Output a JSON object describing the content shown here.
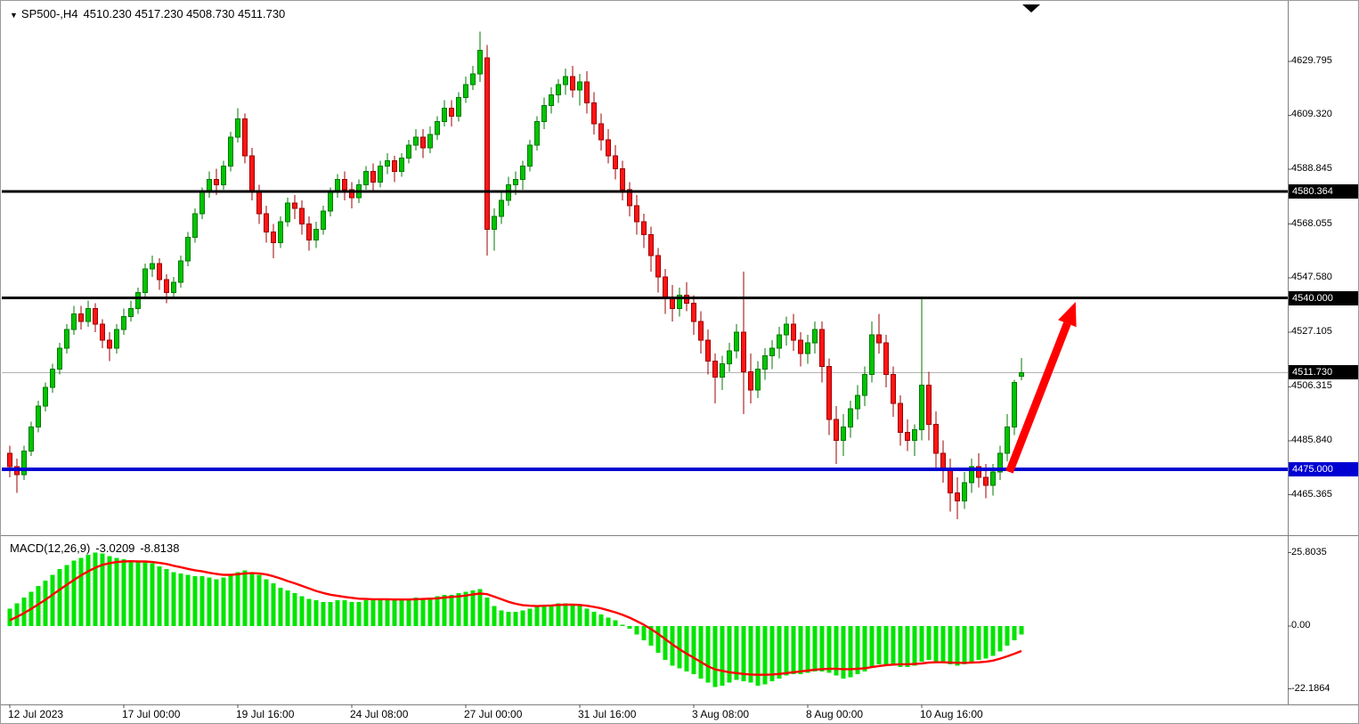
{
  "window": {
    "title_symbol": "SP500-,H4",
    "title_ohlc": "4510.230 4517.230 4508.730 4511.730"
  },
  "icons": {
    "title_marker": "▼",
    "scroll_marker": "chart-shift-triangle"
  },
  "colors": {
    "background": "#FFFFFF",
    "bull": "#00C400",
    "bull_edge": "#007A00",
    "bear": "#FF1414",
    "bear_edge": "#9E0000",
    "histogram": "#00E400",
    "signal": "#FF0000",
    "level_black": "#000000",
    "level_blue": "#0000D2",
    "current_line": "#B4B4B4",
    "current_box": "#000000",
    "arrow": "#FF0000",
    "separator": "#808080"
  },
  "chart_data": {
    "type": "candlestick",
    "title": "SP500-,H4",
    "ohlc_readout": {
      "open": "4510.230",
      "high": "4517.230",
      "low": "4508.730",
      "close": "4511.730"
    },
    "x_ticks": [
      {
        "bar": 0,
        "label": "12 Jul 2023"
      },
      {
        "bar": 16,
        "label": "17 Jul 00:00"
      },
      {
        "bar": 32,
        "label": "19 Jul 16:00"
      },
      {
        "bar": 48,
        "label": "24 Jul 08:00"
      },
      {
        "bar": 64,
        "label": "27 Jul 00:00"
      },
      {
        "bar": 80,
        "label": "31 Jul 16:00"
      },
      {
        "bar": 96,
        "label": "3 Aug 08:00"
      },
      {
        "bar": 112,
        "label": "8 Aug 00:00"
      },
      {
        "bar": 128,
        "label": "10 Aug 16:00"
      }
    ],
    "main_panel": {
      "ylim": [
        4450,
        4650
      ],
      "price_ticks": [
        {
          "v": 4629.795,
          "label": "4629.795"
        },
        {
          "v": 4609.32,
          "label": "4609.320"
        },
        {
          "v": 4588.845,
          "label": "4588.845"
        },
        {
          "v": 4568.055,
          "label": "4568.055"
        },
        {
          "v": 4547.58,
          "label": "4547.580"
        },
        {
          "v": 4527.105,
          "label": "4527.105"
        },
        {
          "v": 4506.315,
          "label": "4506.315"
        },
        {
          "v": 4485.84,
          "label": "4485.840"
        },
        {
          "v": 4465.365,
          "label": "4465.365"
        }
      ],
      "hlines": [
        {
          "v": 4580.364,
          "label": "4580.364",
          "color": "#000000",
          "width": 3,
          "box_bg": "#000000"
        },
        {
          "v": 4540.0,
          "label": "4540.000",
          "color": "#000000",
          "width": 3,
          "box_bg": "#000000"
        },
        {
          "v": 4475.0,
          "label": "4475.000",
          "color": "#0000D2",
          "width": 4,
          "box_bg": "#0000D2"
        }
      ],
      "current_price": {
        "v": 4511.73,
        "label": "4511.730"
      },
      "candles": [
        [
          4481,
          4484,
          4472,
          4476
        ],
        [
          4476,
          4479,
          4466,
          4473
        ],
        [
          4473,
          4484,
          4471,
          4482
        ],
        [
          4482,
          4493,
          4480,
          4491
        ],
        [
          4491,
          4501,
          4489,
          4499
        ],
        [
          4499,
          4508,
          4497,
          4506
        ],
        [
          4506,
          4515,
          4504,
          4513
        ],
        [
          4513,
          4523,
          4511,
          4521
        ],
        [
          4521,
          4530,
          4519,
          4528
        ],
        [
          4528,
          4537,
          4526,
          4534
        ],
        [
          4534,
          4537,
          4528,
          4531
        ],
        [
          4531,
          4539,
          4529,
          4536
        ],
        [
          4536,
          4538,
          4527,
          4530
        ],
        [
          4530,
          4532,
          4521,
          4524
        ],
        [
          4524,
          4527,
          4516,
          4521
        ],
        [
          4521,
          4530,
          4519,
          4528
        ],
        [
          4528,
          4536,
          4526,
          4533
        ],
        [
          4533,
          4539,
          4531,
          4536
        ],
        [
          4536,
          4544,
          4534,
          4542
        ],
        [
          4542,
          4553,
          4540,
          4551
        ],
        [
          4551,
          4556,
          4548,
          4553
        ],
        [
          4553,
          4555,
          4543,
          4547
        ],
        [
          4547,
          4549,
          4538,
          4542
        ],
        [
          4542,
          4548,
          4540,
          4546
        ],
        [
          4546,
          4556,
          4544,
          4554
        ],
        [
          4554,
          4565,
          4552,
          4563
        ],
        [
          4563,
          4574,
          4561,
          4572
        ],
        [
          4572,
          4582,
          4570,
          4580
        ],
        [
          4580,
          4588,
          4578,
          4585
        ],
        [
          4585,
          4589,
          4579,
          4583
        ],
        [
          4583,
          4592,
          4581,
          4590
        ],
        [
          4590,
          4603,
          4588,
          4601
        ],
        [
          4601,
          4612,
          4599,
          4608
        ],
        [
          4608,
          4610,
          4591,
          4594
        ],
        [
          4594,
          4597,
          4577,
          4580
        ],
        [
          4580,
          4583,
          4568,
          4572
        ],
        [
          4572,
          4575,
          4561,
          4565
        ],
        [
          4565,
          4568,
          4555,
          4561
        ],
        [
          4561,
          4571,
          4559,
          4569
        ],
        [
          4569,
          4578,
          4567,
          4576
        ],
        [
          4576,
          4579,
          4570,
          4574
        ],
        [
          4574,
          4577,
          4564,
          4568
        ],
        [
          4568,
          4571,
          4558,
          4562
        ],
        [
          4562,
          4569,
          4559,
          4566
        ],
        [
          4566,
          4575,
          4564,
          4573
        ],
        [
          4573,
          4582,
          4571,
          4580
        ],
        [
          4580,
          4587,
          4578,
          4585
        ],
        [
          4585,
          4588,
          4577,
          4581
        ],
        [
          4581,
          4584,
          4574,
          4578
        ],
        [
          4578,
          4585,
          4576,
          4583
        ],
        [
          4583,
          4590,
          4581,
          4588
        ],
        [
          4588,
          4591,
          4580,
          4584
        ],
        [
          4584,
          4592,
          4582,
          4590
        ],
        [
          4590,
          4595,
          4587,
          4592
        ],
        [
          4592,
          4594,
          4584,
          4588
        ],
        [
          4588,
          4595,
          4586,
          4593
        ],
        [
          4593,
          4600,
          4591,
          4598
        ],
        [
          4598,
          4604,
          4596,
          4601
        ],
        [
          4601,
          4604,
          4593,
          4597
        ],
        [
          4597,
          4605,
          4595,
          4602
        ],
        [
          4602,
          4609,
          4600,
          4607
        ],
        [
          4607,
          4615,
          4605,
          4612
        ],
        [
          4612,
          4615,
          4605,
          4609
        ],
        [
          4609,
          4618,
          4607,
          4616
        ],
        [
          4616,
          4624,
          4614,
          4621
        ],
        [
          4621,
          4628,
          4619,
          4625
        ],
        [
          4625,
          4641,
          4622,
          4634
        ],
        [
          4631,
          4636,
          4556,
          4566
        ],
        [
          4566,
          4574,
          4558,
          4571
        ],
        [
          4571,
          4580,
          4568,
          4577
        ],
        [
          4577,
          4586,
          4575,
          4583
        ],
        [
          4583,
          4588,
          4579,
          4585
        ],
        [
          4585,
          4592,
          4581,
          4590
        ],
        [
          4590,
          4600,
          4588,
          4598
        ],
        [
          4598,
          4609,
          4596,
          4607
        ],
        [
          4607,
          4616,
          4604,
          4613
        ],
        [
          4613,
          4620,
          4610,
          4617
        ],
        [
          4617,
          4623,
          4614,
          4621
        ],
        [
          4621,
          4627,
          4617,
          4624
        ],
        [
          4624,
          4628,
          4616,
          4619
        ],
        [
          4619,
          4625,
          4613,
          4622
        ],
        [
          4622,
          4626,
          4610,
          4614
        ],
        [
          4614,
          4618,
          4602,
          4606
        ],
        [
          4606,
          4610,
          4596,
          4600
        ],
        [
          4600,
          4604,
          4591,
          4594
        ],
        [
          4594,
          4598,
          4585,
          4589
        ],
        [
          4589,
          4592,
          4577,
          4581
        ],
        [
          4581,
          4584,
          4571,
          4575
        ],
        [
          4575,
          4579,
          4564,
          4569
        ],
        [
          4569,
          4572,
          4559,
          4564
        ],
        [
          4564,
          4567,
          4550,
          4556
        ],
        [
          4556,
          4559,
          4542,
          4548
        ],
        [
          4548,
          4551,
          4534,
          4540
        ],
        [
          4540,
          4545,
          4531,
          4536
        ],
        [
          4536,
          4544,
          4533,
          4541
        ],
        [
          4541,
          4546,
          4535,
          4538
        ],
        [
          4538,
          4541,
          4526,
          4531
        ],
        [
          4531,
          4535,
          4519,
          4524
        ],
        [
          4524,
          4528,
          4511,
          4516
        ],
        [
          4516,
          4519,
          4500,
          4510
        ],
        [
          4510,
          4518,
          4505,
          4515
        ],
        [
          4515,
          4523,
          4512,
          4520
        ],
        [
          4520,
          4530,
          4517,
          4527
        ],
        [
          4527,
          4550,
          4496,
          4512
        ],
        [
          4512,
          4519,
          4500,
          4505
        ],
        [
          4505,
          4516,
          4502,
          4513
        ],
        [
          4513,
          4521,
          4509,
          4518
        ],
        [
          4518,
          4524,
          4513,
          4521
        ],
        [
          4521,
          4529,
          4517,
          4526
        ],
        [
          4526,
          4533,
          4522,
          4530
        ],
        [
          4530,
          4534,
          4520,
          4524
        ],
        [
          4524,
          4527,
          4514,
          4519
        ],
        [
          4519,
          4526,
          4515,
          4523
        ],
        [
          4523,
          4531,
          4519,
          4528
        ],
        [
          4528,
          4531,
          4508,
          4514
        ],
        [
          4514,
          4517,
          4488,
          4494
        ],
        [
          4494,
          4499,
          4477,
          4486
        ],
        [
          4486,
          4496,
          4480,
          4491
        ],
        [
          4491,
          4501,
          4487,
          4498
        ],
        [
          4498,
          4507,
          4494,
          4503
        ],
        [
          4503,
          4514,
          4499,
          4511
        ],
        [
          4511,
          4531,
          4508,
          4526
        ],
        [
          4526,
          4534,
          4519,
          4523
        ],
        [
          4523,
          4526,
          4506,
          4511
        ],
        [
          4511,
          4514,
          4495,
          4500
        ],
        [
          4500,
          4503,
          4484,
          4489
        ],
        [
          4489,
          4494,
          4482,
          4486
        ],
        [
          4486,
          4492,
          4480,
          4490
        ],
        [
          4490,
          4540,
          4486,
          4507
        ],
        [
          4507,
          4512,
          4486,
          4492
        ],
        [
          4492,
          4497,
          4475,
          4481
        ],
        [
          4481,
          4486,
          4470,
          4475
        ],
        [
          4475,
          4479,
          4459,
          4466
        ],
        [
          4466,
          4472,
          4456,
          4463
        ],
        [
          4463,
          4474,
          4460,
          4470
        ],
        [
          4470,
          4479,
          4466,
          4476
        ],
        [
          4476,
          4481,
          4468,
          4472
        ],
        [
          4472,
          4477,
          4464,
          4469
        ],
        [
          4469,
          4477,
          4465,
          4474
        ],
        [
          4474,
          4484,
          4471,
          4481
        ],
        [
          4481,
          4496,
          4478,
          4491
        ],
        [
          4491,
          4509,
          4488,
          4508
        ],
        [
          4510.23,
          4517.23,
          4508.73,
          4511.73
        ]
      ]
    },
    "macd_panel": {
      "label": "MACD(12,26,9)",
      "value_main": "-3.0209",
      "value_signal": "-8.8138",
      "ylim": [
        -27,
        31
      ],
      "ticks": [
        {
          "v": 25.8035,
          "label": "25.8035"
        },
        {
          "v": 0,
          "label": "0.00"
        },
        {
          "v": -22.1864,
          "label": "-22.1864"
        }
      ],
      "histogram": [
        6,
        8,
        10,
        12,
        14,
        16,
        18,
        20,
        21.5,
        23,
        24,
        25,
        25.8,
        25.5,
        24.5,
        24,
        23.5,
        23,
        22.5,
        22.5,
        22,
        21,
        20,
        19,
        18.5,
        18,
        17.5,
        17.5,
        17,
        16.5,
        17,
        18,
        19,
        19.5,
        19,
        18,
        16.5,
        15,
        13.5,
        12.5,
        11.5,
        10.5,
        9.5,
        9,
        8.5,
        8.5,
        9,
        9,
        8.5,
        8.5,
        9,
        9,
        9.5,
        9.5,
        9,
        9,
        9.5,
        10,
        9.5,
        10,
        10.5,
        11,
        11,
        11.5,
        12,
        12.5,
        13,
        10,
        7,
        5.5,
        5,
        5,
        5.5,
        6,
        7,
        7.5,
        7.5,
        8,
        8,
        7.5,
        7,
        6,
        5,
        4,
        3,
        2,
        0.5,
        -1,
        -3,
        -5,
        -7,
        -9.5,
        -12,
        -14,
        -15,
        -16,
        -17,
        -18.5,
        -20,
        -21.5,
        -21,
        -20,
        -19,
        -19.5,
        -20,
        -21,
        -20.5,
        -19.5,
        -18.5,
        -17.5,
        -17,
        -17,
        -16.5,
        -16,
        -16,
        -16.5,
        -17.5,
        -18.5,
        -18,
        -17,
        -16,
        -14.5,
        -13.5,
        -13.5,
        -14,
        -14.5,
        -14.5,
        -14,
        -12.5,
        -12,
        -12.5,
        -13,
        -13.5,
        -14,
        -13.5,
        -12.5,
        -12,
        -11.5,
        -10.5,
        -9,
        -7,
        -5,
        -3.02
      ],
      "signal": [
        2,
        3.2,
        4.5,
        6,
        7.6,
        9.2,
        11,
        12.8,
        14.5,
        16.2,
        17.8,
        19.2,
        20.5,
        21.5,
        22.1,
        22.5,
        22.7,
        22.8,
        22.7,
        22.7,
        22.5,
        22.2,
        21.8,
        21.2,
        20.7,
        20.1,
        19.6,
        19.2,
        18.7,
        18.3,
        18,
        18,
        18.2,
        18.5,
        18.6,
        18.5,
        18.1,
        17.5,
        16.7,
        15.8,
        15,
        14.1,
        13.2,
        12.3,
        11.6,
        11,
        10.6,
        10.2,
        9.9,
        9.6,
        9.5,
        9.4,
        9.4,
        9.4,
        9.3,
        9.3,
        9.3,
        9.4,
        9.5,
        9.6,
        9.7,
        10,
        10.2,
        10.4,
        10.7,
        11.1,
        11.4,
        11.2,
        10.3,
        9.4,
        8.5,
        7.8,
        7.3,
        7.1,
        7,
        7.1,
        7.2,
        7.4,
        7.5,
        7.5,
        7.4,
        7.1,
        6.7,
        6.2,
        5.5,
        4.8,
        3.9,
        2.9,
        1.7,
        0.4,
        -1.1,
        -2.8,
        -4.6,
        -6.5,
        -8.2,
        -9.8,
        -11.2,
        -12.7,
        -14.2,
        -15.3,
        -15.8,
        -16.3,
        -16.6,
        -16.9,
        -17.1,
        -17.2,
        -17.2,
        -17.1,
        -16.9,
        -16.6,
        -16.3,
        -16,
        -15.7,
        -15.4,
        -15.2,
        -15.1,
        -15.1,
        -15.2,
        -15.2,
        -15.1,
        -14.9,
        -14.5,
        -14.1,
        -13.8,
        -13.6,
        -13.5,
        -13.5,
        -13.4,
        -13.2,
        -12.9,
        -12.8,
        -12.8,
        -12.9,
        -13,
        -13,
        -12.9,
        -12.8,
        -12.6,
        -12.2,
        -11.5,
        -10.7,
        -9.8,
        -8.81
      ]
    },
    "annotations": {
      "arrow": {
        "from_bar": 140.3,
        "from_price": 4474,
        "to_bar": 149.6,
        "to_price": 4538.5,
        "color": "#FF0000"
      }
    }
  }
}
